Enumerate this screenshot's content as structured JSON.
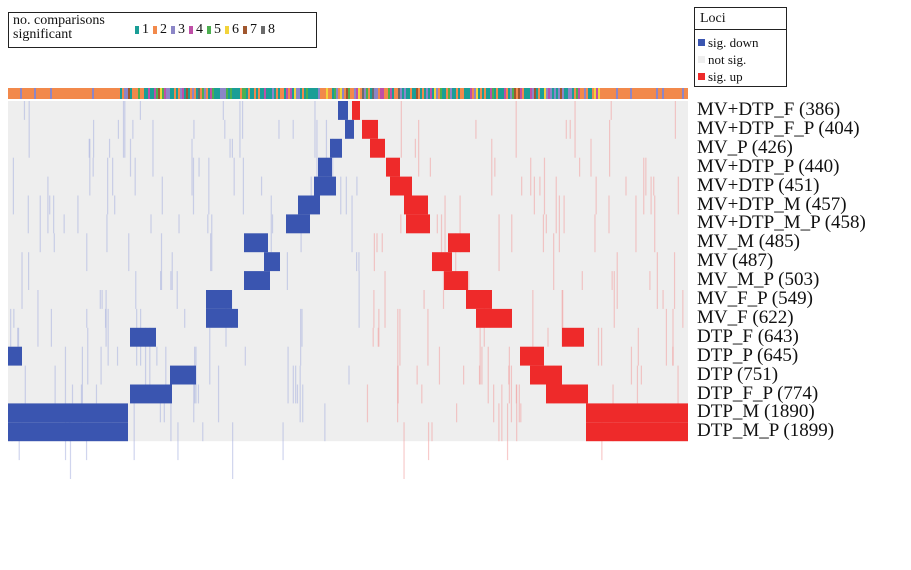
{
  "legend_comparisons": {
    "title": "no. comparisons\nsignificant",
    "items": [
      {
        "label": "1",
        "color": "#1a9e96"
      },
      {
        "label": "2",
        "color": "#f2894b"
      },
      {
        "label": "3",
        "color": "#8c86c7"
      },
      {
        "label": "4",
        "color": "#bf4fa7"
      },
      {
        "label": "5",
        "color": "#4caf50"
      },
      {
        "label": "6",
        "color": "#f2d33a"
      },
      {
        "label": "7",
        "color": "#a0562e"
      },
      {
        "label": "8",
        "color": "#6b6b6b"
      }
    ]
  },
  "legend_loci": {
    "title": "Loci",
    "items": [
      {
        "label": "sig. down",
        "color": "#3a55b0"
      },
      {
        "label": "not sig.",
        "color": "#eeeeee"
      },
      {
        "label": "sig. up",
        "color": "#ee2a2a"
      }
    ]
  },
  "chart_data": {
    "type": "heatmap",
    "title": "",
    "xlabel": "",
    "ylabel": "",
    "colors": {
      "down": "#3a55b0",
      "none": "#eeeeee",
      "up": "#ee2a2a"
    },
    "rows": [
      {
        "label": "MV+DTP_F (386)",
        "down": [
          338,
          348
        ],
        "up": [
          352,
          360
        ]
      },
      {
        "label": "MV+DTP_F_P (404)",
        "down": [
          345,
          354
        ],
        "up": [
          362,
          378
        ]
      },
      {
        "label": "MV_P (426)",
        "down": [
          330,
          342
        ],
        "up": [
          370,
          385
        ]
      },
      {
        "label": "MV+DTP_P (440)",
        "down": [
          318,
          332
        ],
        "up": [
          386,
          400
        ]
      },
      {
        "label": "MV+DTP (451)",
        "down": [
          314,
          336
        ],
        "up": [
          390,
          412
        ]
      },
      {
        "label": "MV+DTP_M (457)",
        "down": [
          298,
          320
        ],
        "up": [
          404,
          428
        ]
      },
      {
        "label": "MV+DTP_M_P (458)",
        "down": [
          286,
          310
        ],
        "up": [
          406,
          430
        ]
      },
      {
        "label": "MV_M (485)",
        "down": [
          244,
          268
        ],
        "up": [
          448,
          470
        ]
      },
      {
        "label": "MV (487)",
        "down": [
          264,
          280
        ],
        "up": [
          432,
          452
        ]
      },
      {
        "label": "MV_M_P (503)",
        "down": [
          244,
          270
        ],
        "up": [
          444,
          468
        ]
      },
      {
        "label": "MV_F_P (549)",
        "down": [
          206,
          232
        ],
        "up": [
          466,
          492
        ]
      },
      {
        "label": "MV_F (622)",
        "down": [
          206,
          238
        ],
        "up": [
          476,
          512
        ]
      },
      {
        "label": "DTP_F (643)",
        "down": [
          130,
          156
        ],
        "up": [
          562,
          584
        ]
      },
      {
        "label": "DTP_P (645)",
        "down": [
          8,
          22
        ],
        "up": [
          520,
          544
        ]
      },
      {
        "label": "DTP (751)",
        "down": [
          170,
          196
        ],
        "up": [
          530,
          562
        ]
      },
      {
        "label": "DTP_F_P (774)",
        "down": [
          130,
          172
        ],
        "up": [
          546,
          588
        ]
      },
      {
        "label": "DTP_M (1890)",
        "down": [
          8,
          128
        ],
        "up": [
          586,
          688
        ]
      },
      {
        "label": "DTP_M_P (1899)",
        "down": [
          8,
          128
        ],
        "up": [
          586,
          688
        ]
      }
    ]
  }
}
